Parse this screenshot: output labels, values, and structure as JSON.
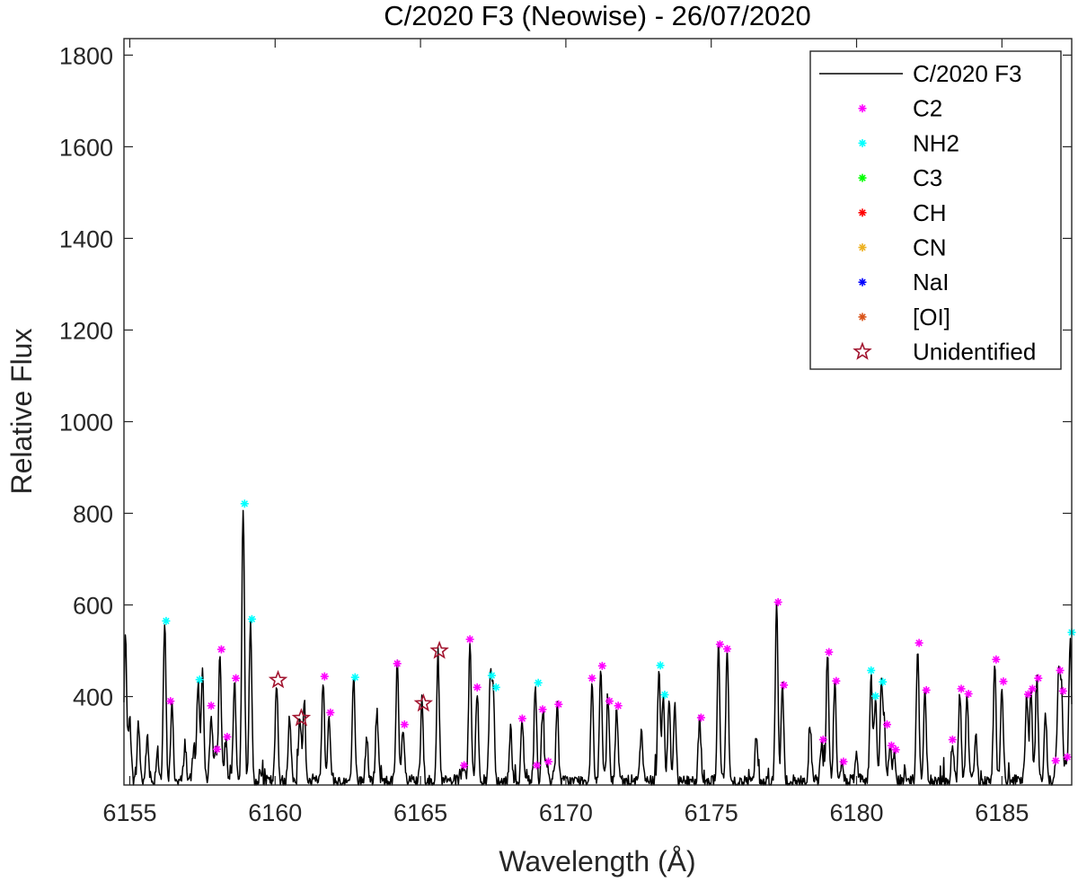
{
  "chart_data": {
    "type": "line",
    "title": "C/2020 F3 (Neowise) - 26/07/2020",
    "xlabel": "Wavelength (Å)",
    "ylabel": "Relative Flux",
    "xlim": [
      6154.8,
      6187.4
    ],
    "ylim": [
      207,
      1836
    ],
    "xticks": [
      6155,
      6160,
      6165,
      6170,
      6175,
      6180,
      6185
    ],
    "yticks": [
      400,
      600,
      800,
      1000,
      1200,
      1400,
      1600,
      1800
    ],
    "grid": false,
    "legend_position": "top-right",
    "continuum": 215,
    "spectrum_peaks": [
      [
        6154.85,
        530
      ],
      [
        6155.0,
        350
      ],
      [
        6155.3,
        340
      ],
      [
        6155.6,
        310
      ],
      [
        6155.95,
        280
      ],
      [
        6156.2,
        560
      ],
      [
        6156.45,
        380
      ],
      [
        6156.9,
        300
      ],
      [
        6157.2,
        290
      ],
      [
        6157.35,
        430
      ],
      [
        6157.5,
        460
      ],
      [
        6157.8,
        370
      ],
      [
        6157.95,
        285
      ],
      [
        6158.1,
        495
      ],
      [
        6158.3,
        305
      ],
      [
        6158.6,
        435
      ],
      [
        6158.9,
        815
      ],
      [
        6159.15,
        560
      ],
      [
        6159.5,
        240
      ],
      [
        6160.05,
        430
      ],
      [
        6160.5,
        360
      ],
      [
        6160.85,
        360
      ],
      [
        6161.0,
        380
      ],
      [
        6161.65,
        440
      ],
      [
        6161.85,
        360
      ],
      [
        6162.7,
        440
      ],
      [
        6163.15,
        310
      ],
      [
        6163.5,
        370
      ],
      [
        6164.2,
        470
      ],
      [
        6164.4,
        330
      ],
      [
        6165.05,
        380
      ],
      [
        6165.6,
        495
      ],
      [
        6166.45,
        250
      ],
      [
        6166.7,
        520
      ],
      [
        6166.95,
        415
      ],
      [
        6167.4,
        440
      ],
      [
        6167.5,
        410
      ],
      [
        6168.1,
        330
      ],
      [
        6168.5,
        345
      ],
      [
        6168.95,
        420
      ],
      [
        6169.2,
        365
      ],
      [
        6169.35,
        255
      ],
      [
        6169.7,
        380
      ],
      [
        6170.9,
        435
      ],
      [
        6171.2,
        460
      ],
      [
        6171.45,
        385
      ],
      [
        6171.75,
        375
      ],
      [
        6172.6,
        330
      ],
      [
        6173.2,
        465
      ],
      [
        6173.35,
        400
      ],
      [
        6173.55,
        385
      ],
      [
        6173.75,
        385
      ],
      [
        6174.6,
        350
      ],
      [
        6175.25,
        510
      ],
      [
        6175.55,
        500
      ],
      [
        6176.55,
        310
      ],
      [
        6177.25,
        600
      ],
      [
        6177.45,
        420
      ],
      [
        6178.4,
        335
      ],
      [
        6178.8,
        305
      ],
      [
        6179.0,
        495
      ],
      [
        6179.25,
        430
      ],
      [
        6179.5,
        255
      ],
      [
        6180.0,
        270
      ],
      [
        6180.5,
        450
      ],
      [
        6180.65,
        400
      ],
      [
        6180.85,
        425
      ],
      [
        6180.95,
        335
      ],
      [
        6181.15,
        290
      ],
      [
        6181.3,
        280
      ],
      [
        6182.1,
        510
      ],
      [
        6182.35,
        410
      ],
      [
        6183.3,
        300
      ],
      [
        6183.55,
        410
      ],
      [
        6183.8,
        400
      ],
      [
        6184.1,
        320
      ],
      [
        6184.75,
        475
      ],
      [
        6185.0,
        425
      ],
      [
        6185.85,
        400
      ],
      [
        6186.0,
        410
      ],
      [
        6186.2,
        435
      ],
      [
        6186.5,
        360
      ],
      [
        6186.85,
        250
      ],
      [
        6186.95,
        450
      ],
      [
        6187.05,
        410
      ],
      [
        6187.2,
        265
      ],
      [
        6187.35,
        535
      ]
    ],
    "series": [
      {
        "name": "C/2020 F3",
        "kind": "line",
        "color": "#000000"
      },
      {
        "name": "C2",
        "kind": "marker",
        "color": "#ff00ff",
        "points": [
          [
            6156.4,
            390
          ],
          [
            6157.8,
            380
          ],
          [
            6158.0,
            285
          ],
          [
            6158.15,
            503
          ],
          [
            6158.35,
            312
          ],
          [
            6158.65,
            440
          ],
          [
            6161.7,
            444
          ],
          [
            6161.9,
            365
          ],
          [
            6164.2,
            472
          ],
          [
            6164.45,
            339
          ],
          [
            6166.5,
            250
          ],
          [
            6166.7,
            525
          ],
          [
            6166.95,
            420
          ],
          [
            6168.5,
            352
          ],
          [
            6169.0,
            250
          ],
          [
            6169.2,
            372
          ],
          [
            6169.4,
            258
          ],
          [
            6169.75,
            383
          ],
          [
            6170.9,
            440
          ],
          [
            6171.25,
            467
          ],
          [
            6171.5,
            390
          ],
          [
            6171.8,
            380
          ],
          [
            6174.65,
            354
          ],
          [
            6175.3,
            514
          ],
          [
            6175.55,
            504
          ],
          [
            6177.3,
            606
          ],
          [
            6177.5,
            425
          ],
          [
            6178.85,
            306
          ],
          [
            6179.05,
            497
          ],
          [
            6179.3,
            434
          ],
          [
            6179.55,
            258
          ],
          [
            6181.05,
            339
          ],
          [
            6181.2,
            293
          ],
          [
            6181.35,
            284
          ],
          [
            6182.15,
            517
          ],
          [
            6182.4,
            414
          ],
          [
            6183.3,
            306
          ],
          [
            6183.6,
            417
          ],
          [
            6183.85,
            406
          ],
          [
            6184.8,
            481
          ],
          [
            6185.05,
            433
          ],
          [
            6185.9,
            405
          ],
          [
            6186.05,
            417
          ],
          [
            6186.25,
            440
          ],
          [
            6186.85,
            260
          ],
          [
            6187.0,
            457
          ],
          [
            6187.1,
            412
          ],
          [
            6187.25,
            268
          ]
        ]
      },
      {
        "name": "NH2",
        "kind": "marker",
        "color": "#00ffff",
        "points": [
          [
            6156.25,
            565
          ],
          [
            6157.4,
            437
          ],
          [
            6158.95,
            821
          ],
          [
            6159.2,
            569
          ],
          [
            6162.75,
            442
          ],
          [
            6167.45,
            446
          ],
          [
            6167.6,
            420
          ],
          [
            6169.05,
            430
          ],
          [
            6173.25,
            468
          ],
          [
            6173.4,
            404
          ],
          [
            6180.5,
            457
          ],
          [
            6180.65,
            401
          ],
          [
            6180.9,
            432
          ],
          [
            6187.4,
            540
          ]
        ]
      },
      {
        "name": "C3",
        "kind": "marker",
        "color": "#00ff00",
        "points": []
      },
      {
        "name": "CH",
        "kind": "marker",
        "color": "#ff0000",
        "points": []
      },
      {
        "name": "CN",
        "kind": "marker",
        "color": "#edb120",
        "points": []
      },
      {
        "name": "NaI",
        "kind": "marker",
        "color": "#0000ff",
        "points": []
      },
      {
        "name": "[OI]",
        "kind": "marker",
        "color": "#d95319",
        "points": []
      },
      {
        "name": "Unidentified",
        "kind": "star",
        "color": "#a2142f",
        "points": [
          [
            6160.1,
            436
          ],
          [
            6160.9,
            353
          ],
          [
            6165.1,
            385
          ],
          [
            6165.65,
            500
          ]
        ]
      }
    ]
  }
}
